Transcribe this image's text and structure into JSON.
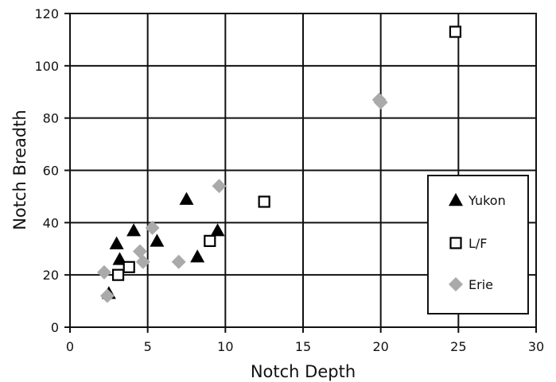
{
  "chart_data": {
    "type": "scatter",
    "xlabel": "Notch Depth",
    "ylabel": "Notch Breadth",
    "xlim": [
      0,
      30
    ],
    "ylim": [
      0,
      120
    ],
    "xticks": [
      0,
      5,
      10,
      15,
      20,
      25,
      30
    ],
    "yticks": [
      0,
      20,
      40,
      60,
      80,
      100,
      120
    ],
    "grid": true,
    "legend_position": "right",
    "series": [
      {
        "name": "Yukon",
        "marker": "triangle",
        "color": "#000000",
        "points": [
          [
            2.5,
            13
          ],
          [
            3.0,
            32
          ],
          [
            3.2,
            26
          ],
          [
            4.1,
            37
          ],
          [
            5.6,
            33
          ],
          [
            7.5,
            49
          ],
          [
            8.2,
            27
          ],
          [
            9.5,
            37
          ]
        ]
      },
      {
        "name": "L/F",
        "marker": "square-open",
        "color": "#000000",
        "points": [
          [
            3.1,
            20
          ],
          [
            3.8,
            23
          ],
          [
            9.0,
            33
          ],
          [
            12.5,
            48
          ],
          [
            24.8,
            113
          ]
        ]
      },
      {
        "name": "Erie",
        "marker": "diamond",
        "color": "#aaaaaa",
        "points": [
          [
            2.2,
            21
          ],
          [
            2.4,
            12
          ],
          [
            4.5,
            29
          ],
          [
            4.7,
            25
          ],
          [
            5.3,
            38
          ],
          [
            7.0,
            25
          ],
          [
            9.6,
            54
          ],
          [
            19.9,
            87
          ],
          [
            20.0,
            86
          ]
        ]
      }
    ]
  }
}
